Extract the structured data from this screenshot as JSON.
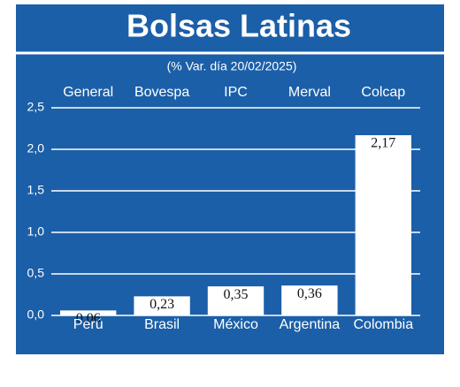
{
  "chart_data": {
    "type": "bar",
    "title": "Bolsas Latinas",
    "subtitle": "(% Var. día 20/02/2025)",
    "categories": [
      "Perú",
      "Brasil",
      "México",
      "Argentina",
      "Colombia"
    ],
    "index_names": [
      "General",
      "Bovespa",
      "IPC",
      "Merval",
      "Colcap"
    ],
    "values": [
      0.06,
      0.23,
      0.35,
      0.36,
      2.17
    ],
    "value_labels": [
      "0,06",
      "0,23",
      "0,35",
      "0,36",
      "2,17"
    ],
    "color": "#ffffff",
    "ylim": [
      0,
      2.5
    ],
    "yticks": [
      {
        "value": 0,
        "label": "0,0"
      },
      {
        "value": 0.5,
        "label": "0,5"
      },
      {
        "value": 1,
        "label": "1,0"
      },
      {
        "value": 1.5,
        "label": "1,5"
      },
      {
        "value": 2,
        "label": "2,0"
      },
      {
        "value": 2.5,
        "label": "2,5"
      }
    ],
    "grid": true
  }
}
